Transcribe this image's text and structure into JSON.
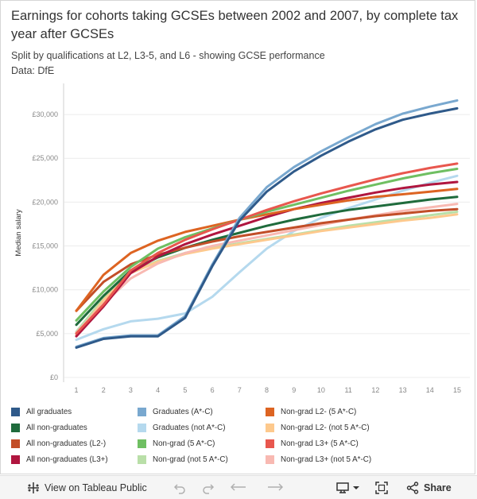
{
  "header": {
    "title": "Earnings for cohorts taking GCSEs between 2002 and 2007, by complete tax year after GCSEs",
    "subtitle": "Split by qualifications at L2, L3-5, and L6 - showing GCSE performance",
    "source": "Data: DfE"
  },
  "chart_data": {
    "type": "line",
    "title": "Earnings for cohorts taking GCSEs between 2002 and 2007, by complete tax year after GCSEs",
    "xlabel": "",
    "ylabel": "Median salary",
    "x": [
      1,
      2,
      3,
      4,
      5,
      6,
      7,
      8,
      9,
      10,
      11,
      12,
      13,
      14,
      15
    ],
    "ylim": [
      0,
      33000
    ],
    "yticks": [
      0,
      5000,
      10000,
      15000,
      20000,
      25000,
      30000
    ],
    "ytick_labels": [
      "£0",
      "£5,000",
      "£10,000",
      "£15,000",
      "£20,000",
      "£25,000",
      "£30,000"
    ],
    "grid": "horizontal",
    "series": [
      {
        "name": "Graduates (not A*-C)",
        "color": "#b5d9ee",
        "values": [
          4300,
          5500,
          6400,
          6700,
          7300,
          9200,
          12000,
          14700,
          16700,
          18200,
          19300,
          20300,
          21300,
          22200,
          23000
        ]
      },
      {
        "name": "Non-grad (not 5 A*-C)",
        "color": "#b9dfa8",
        "values": [
          5200,
          9000,
          12000,
          13300,
          14200,
          14800,
          15300,
          15800,
          16300,
          16800,
          17300,
          17700,
          18100,
          18500,
          18900
        ]
      },
      {
        "name": "Non-grad L2- (not 5 A*-C)",
        "color": "#fdc98d",
        "values": [
          4800,
          8800,
          11900,
          13200,
          14100,
          14700,
          15200,
          15700,
          16200,
          16700,
          17100,
          17500,
          17900,
          18200,
          18600
        ]
      },
      {
        "name": "Non-grad L3+ (not 5 A*-C)",
        "color": "#f8b9b2",
        "values": [
          5100,
          8400,
          11300,
          13000,
          14200,
          15000,
          15600,
          16200,
          16800,
          17400,
          18000,
          18500,
          19000,
          19400,
          19800
        ]
      },
      {
        "name": "All non-graduates",
        "color": "#1f6b3c",
        "values": [
          6000,
          9300,
          12200,
          13700,
          14800,
          15700,
          16500,
          17300,
          18000,
          18600,
          19100,
          19500,
          19900,
          20300,
          20600
        ]
      },
      {
        "name": "All non-graduates (L2-)",
        "color": "#c24e28",
        "values": [
          7600,
          10900,
          12900,
          14000,
          14800,
          15500,
          16100,
          16600,
          17100,
          17600,
          18000,
          18400,
          18700,
          19000,
          19200
        ]
      },
      {
        "name": "All non-graduates (L3+)",
        "color": "#b0163f",
        "values": [
          4700,
          8100,
          11900,
          13800,
          15200,
          16300,
          17300,
          18300,
          19200,
          19900,
          20500,
          21100,
          21600,
          22000,
          22300
        ]
      },
      {
        "name": "Non-grad L2- (5 A*-C)",
        "color": "#dd6422",
        "values": [
          7600,
          11700,
          14200,
          15600,
          16600,
          17300,
          18000,
          18600,
          19200,
          19700,
          20200,
          20600,
          20900,
          21200,
          21500
        ]
      },
      {
        "name": "Non-grad (5 A*-C)",
        "color": "#6fbf62",
        "values": [
          6500,
          9800,
          12600,
          14700,
          16000,
          17000,
          18000,
          18900,
          19700,
          20500,
          21300,
          22000,
          22700,
          23300,
          23800
        ]
      },
      {
        "name": "Non-grad L3+ (5 A*-C)",
        "color": "#e8574e",
        "values": [
          5000,
          8300,
          12200,
          14200,
          15700,
          16900,
          18000,
          19100,
          20100,
          21000,
          21800,
          22600,
          23300,
          23900,
          24400
        ]
      },
      {
        "name": "Graduates (A*-C)",
        "color": "#79a8cf",
        "values": [
          3500,
          4500,
          4800,
          4800,
          7000,
          12900,
          18200,
          21700,
          24000,
          25800,
          27400,
          28900,
          30100,
          30900,
          31600
        ]
      },
      {
        "name": "All graduates",
        "color": "#2f5a8a",
        "values": [
          3400,
          4400,
          4700,
          4700,
          6800,
          12700,
          17900,
          21200,
          23500,
          25300,
          26900,
          28300,
          29400,
          30100,
          30700
        ]
      }
    ]
  },
  "legend": {
    "items": [
      {
        "label": "All graduates",
        "color": "#2f5a8a"
      },
      {
        "label": "All non-graduates",
        "color": "#1f6b3c"
      },
      {
        "label": "All non-graduates (L2-)",
        "color": "#c24e28"
      },
      {
        "label": "All non-graduates (L3+)",
        "color": "#b0163f"
      },
      {
        "label": "Graduates (A*-C)",
        "color": "#79a8cf"
      },
      {
        "label": "Graduates (not A*-C)",
        "color": "#b5d9ee"
      },
      {
        "label": "Non-grad (5 A*-C)",
        "color": "#6fbf62"
      },
      {
        "label": "Non-grad (not 5 A*-C)",
        "color": "#b9dfa8"
      },
      {
        "label": "Non-grad L2- (5 A*-C)",
        "color": "#dd6422"
      },
      {
        "label": "Non-grad L2- (not 5 A*-C)",
        "color": "#fdc98d"
      },
      {
        "label": "Non-grad L3+ (5 A*-C)",
        "color": "#e8574e"
      },
      {
        "label": "Non-grad L3+ (not 5 A*-C)",
        "color": "#f8b9b2"
      }
    ]
  },
  "toolbar": {
    "view_label": "View on Tableau Public",
    "share_label": "Share"
  }
}
